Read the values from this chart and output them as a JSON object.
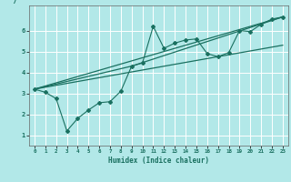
{
  "title": "",
  "xlabel": "Humidex (Indice chaleur)",
  "bg_color": "#b2e8e8",
  "grid_color": "#ffffff",
  "line_color": "#1a7060",
  "xlim": [
    -0.5,
    23.5
  ],
  "ylim": [
    0.5,
    7.2
  ],
  "xticks": [
    0,
    1,
    2,
    3,
    4,
    5,
    6,
    7,
    8,
    9,
    10,
    11,
    12,
    13,
    14,
    15,
    16,
    17,
    18,
    19,
    20,
    21,
    22,
    23
  ],
  "yticks": [
    1,
    2,
    3,
    4,
    5,
    6
  ],
  "scatter_x": [
    0,
    1,
    2,
    3,
    4,
    5,
    6,
    7,
    8,
    9,
    10,
    11,
    12,
    13,
    14,
    15,
    16,
    17,
    18,
    19,
    20,
    21,
    22,
    23
  ],
  "scatter_y": [
    3.2,
    3.05,
    2.75,
    1.2,
    1.8,
    2.2,
    2.55,
    2.6,
    3.1,
    4.3,
    4.45,
    6.2,
    5.15,
    5.4,
    5.55,
    5.6,
    4.9,
    4.75,
    4.95,
    6.0,
    5.95,
    6.3,
    6.55,
    6.65
  ],
  "line1_x": [
    0,
    23
  ],
  "line1_y": [
    3.2,
    6.65
  ],
  "line2_x": [
    0,
    23
  ],
  "line2_y": [
    3.2,
    5.3
  ],
  "line3_x": [
    0,
    9,
    23
  ],
  "line3_y": [
    3.2,
    4.3,
    6.65
  ]
}
